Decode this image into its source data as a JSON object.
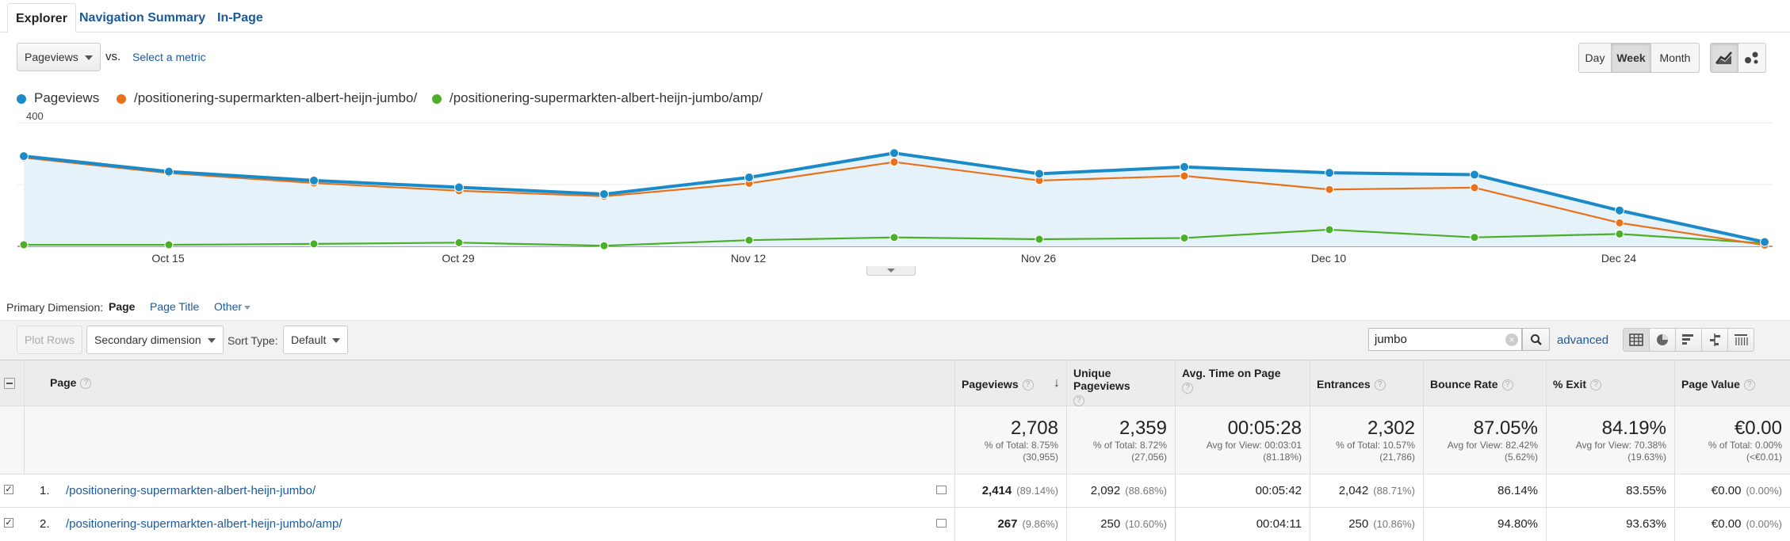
{
  "tabs": [
    "Explorer",
    "Navigation Summary",
    "In-Page"
  ],
  "controls": {
    "metric": "Pageviews",
    "vs": "vs.",
    "select_metric": "Select a metric",
    "periods": [
      "Day",
      "Week",
      "Month"
    ],
    "active_period": "Week"
  },
  "legend": [
    {
      "name": "Pageviews",
      "color": "#1a8bc8"
    },
    {
      "name": "/positionering-supermarkten-albert-heijn-jumbo/",
      "color": "#e8711a"
    },
    {
      "name": "/positionering-supermarkten-albert-heijn-jumbo/amp/",
      "color": "#4caf2a"
    }
  ],
  "chart_data": {
    "type": "line",
    "y_ticks": [
      "400",
      "200"
    ],
    "ylim": [
      0,
      400
    ],
    "x_labels": [
      "Oct 15",
      "Oct 29",
      "Nov 12",
      "Nov 26",
      "Dec 10",
      "Dec 24"
    ],
    "series": [
      {
        "name": "Pageviews",
        "color": "#1a8bc8",
        "values": [
          292,
          242,
          213,
          191,
          169,
          223,
          302,
          235,
          257,
          238,
          232,
          116,
          14
        ]
      },
      {
        "name": "/positionering-supermarkten-albert-heijn-jumbo/",
        "color": "#e8711a",
        "values": [
          287,
          237,
          205,
          180,
          162,
          204,
          273,
          213,
          228,
          184,
          190,
          76,
          4
        ]
      },
      {
        "name": "/positionering-supermarkten-albert-heijn-jumbo/amp/",
        "color": "#4caf2a",
        "values": [
          5,
          5,
          8,
          12,
          2,
          20,
          29,
          23,
          27,
          54,
          29,
          40,
          10
        ]
      }
    ]
  },
  "dimension": {
    "label": "Primary Dimension:",
    "active": "Page",
    "title": "Page Title",
    "other": "Other"
  },
  "toolbar": {
    "plot_rows": "Plot Rows",
    "secondary": "Secondary dimension",
    "sort_label": "Sort Type:",
    "sort_value": "Default",
    "search_value": "jumbo",
    "advanced": "advanced"
  },
  "table": {
    "headers": [
      "Page",
      "Pageviews",
      "Unique Pageviews",
      "Avg. Time on Page",
      "Entrances",
      "Bounce Rate",
      "% Exit",
      "Page Value"
    ],
    "totals": [
      {
        "value": "2,708",
        "sub1": "% of Total: 8.75%",
        "sub2": "(30,955)"
      },
      {
        "value": "2,359",
        "sub1": "% of Total: 8.72%",
        "sub2": "(27,056)"
      },
      {
        "value": "00:05:28",
        "sub1": "Avg for View: 00:03:01",
        "sub2": "(81.18%)"
      },
      {
        "value": "2,302",
        "sub1": "% of Total: 10.57%",
        "sub2": "(21,786)"
      },
      {
        "value": "87.05%",
        "sub1": "Avg for View: 82.42%",
        "sub2": "(5.62%)"
      },
      {
        "value": "84.19%",
        "sub1": "Avg for View: 70.38%",
        "sub2": "(19.63%)"
      },
      {
        "value": "€0.00",
        "sub1": "% of Total: 0.00%",
        "sub2": "(<€0.01)"
      }
    ],
    "rows": [
      {
        "index": "1.",
        "page": "/positionering-supermarkten-albert-heijn-jumbo/",
        "pageviews": "2,414",
        "pageviews_pct": "(89.14%)",
        "unique": "2,092",
        "unique_pct": "(88.68%)",
        "avg_time": "00:05:42",
        "entrances": "2,042",
        "entrances_pct": "(88.71%)",
        "bounce": "86.14%",
        "exit": "83.55%",
        "value": "€0.00",
        "value_pct": "(0.00%)"
      },
      {
        "index": "2.",
        "page": "/positionering-supermarkten-albert-heijn-jumbo/amp/",
        "pageviews": "267",
        "pageviews_pct": "(9.86%)",
        "unique": "250",
        "unique_pct": "(10.60%)",
        "avg_time": "00:04:11",
        "entrances": "250",
        "entrances_pct": "(10.86%)",
        "bounce": "94.80%",
        "exit": "93.63%",
        "value": "€0.00",
        "value_pct": "(0.00%)"
      }
    ]
  }
}
